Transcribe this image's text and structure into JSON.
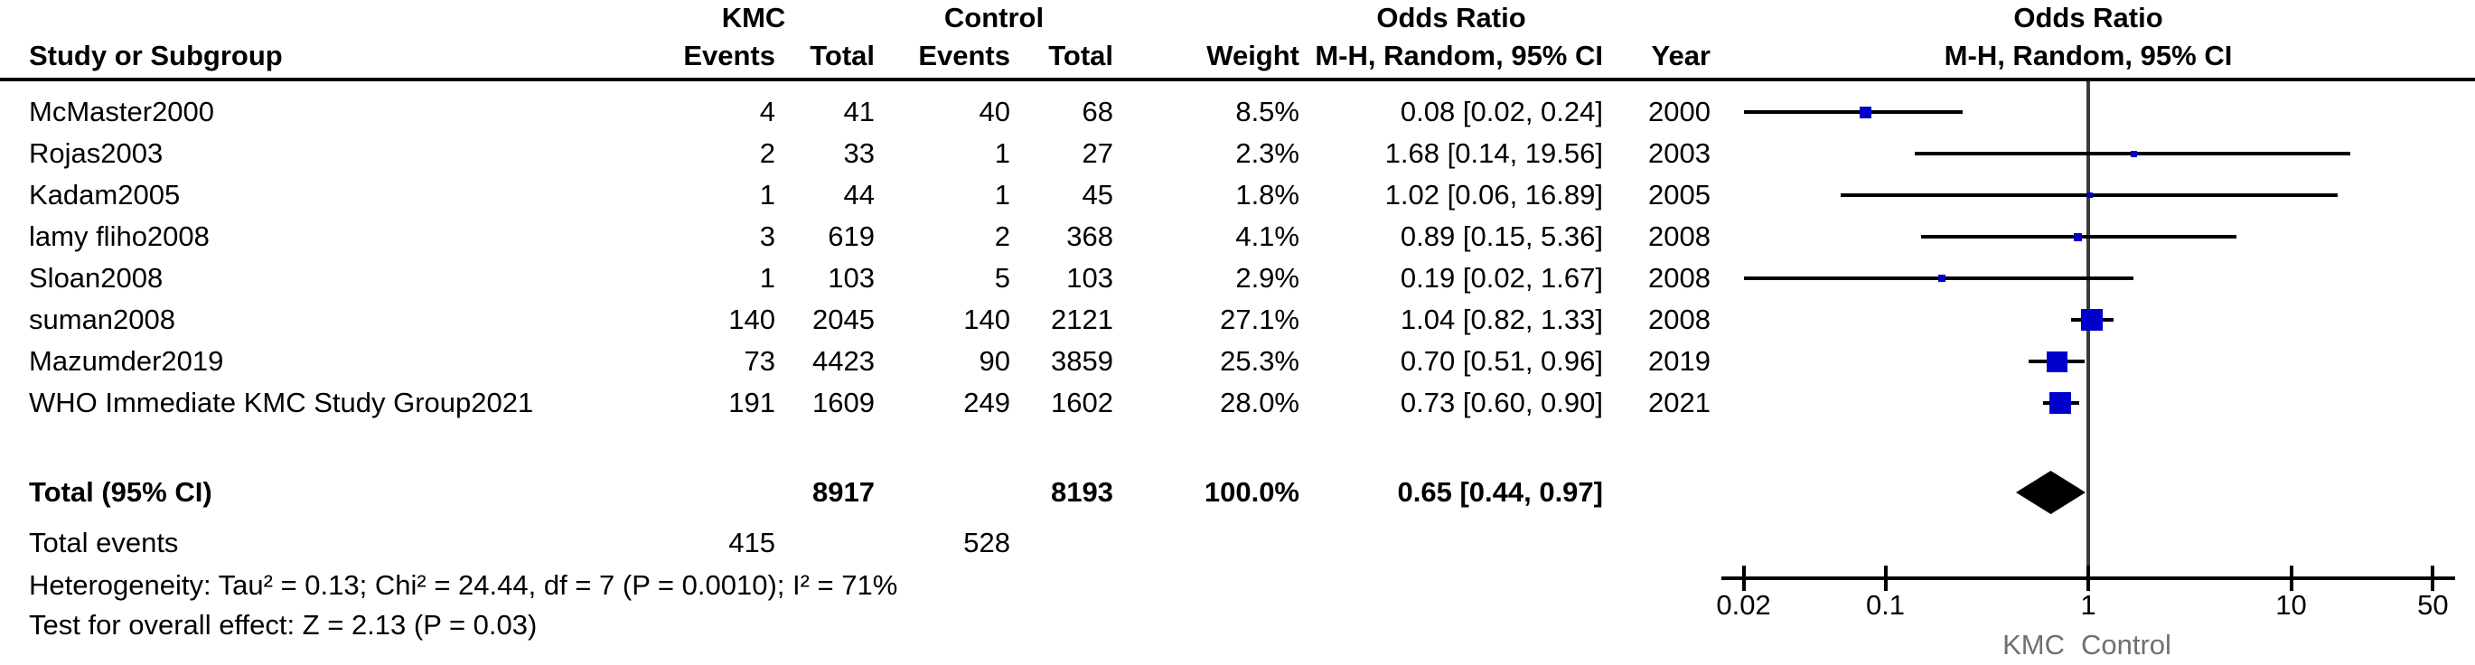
{
  "header": {
    "group_kmc": "KMC",
    "group_control": "Control",
    "group_odds_ratio": "Odds Ratio",
    "col_study": "Study or Subgroup",
    "col_events": "Events",
    "col_total": "Total",
    "col_weight": "Weight",
    "col_or_method": "M-H, Random, 95% CI",
    "col_year": "Year",
    "plot_title": "Odds Ratio",
    "plot_subtitle": "M-H, Random, 95% CI"
  },
  "table": {
    "rows": [
      {
        "study": "McMaster2000",
        "kmc_events": "4",
        "kmc_total": "41",
        "ctl_events": "40",
        "ctl_total": "68",
        "weight": "8.5%",
        "or_ci": "0.08 [0.02, 0.24]",
        "year": "2000"
      },
      {
        "study": "Rojas2003",
        "kmc_events": "2",
        "kmc_total": "33",
        "ctl_events": "1",
        "ctl_total": "27",
        "weight": "2.3%",
        "or_ci": "1.68 [0.14, 19.56]",
        "year": "2003"
      },
      {
        "study": "Kadam2005",
        "kmc_events": "1",
        "kmc_total": "44",
        "ctl_events": "1",
        "ctl_total": "45",
        "weight": "1.8%",
        "or_ci": "1.02 [0.06, 16.89]",
        "year": "2005"
      },
      {
        "study": "lamy fliho2008",
        "kmc_events": "3",
        "kmc_total": "619",
        "ctl_events": "2",
        "ctl_total": "368",
        "weight": "4.1%",
        "or_ci": "0.89 [0.15, 5.36]",
        "year": "2008"
      },
      {
        "study": "Sloan2008",
        "kmc_events": "1",
        "kmc_total": "103",
        "ctl_events": "5",
        "ctl_total": "103",
        "weight": "2.9%",
        "or_ci": "0.19 [0.02, 1.67]",
        "year": "2008"
      },
      {
        "study": "suman2008",
        "kmc_events": "140",
        "kmc_total": "2045",
        "ctl_events": "140",
        "ctl_total": "2121",
        "weight": "27.1%",
        "or_ci": "1.04 [0.82, 1.33]",
        "year": "2008"
      },
      {
        "study": "Mazumder2019",
        "kmc_events": "73",
        "kmc_total": "4423",
        "ctl_events": "90",
        "ctl_total": "3859",
        "weight": "25.3%",
        "or_ci": "0.70 [0.51, 0.96]",
        "year": "2019"
      },
      {
        "study": "WHO Immediate KMC Study Group2021",
        "kmc_events": "191",
        "kmc_total": "1609",
        "ctl_events": "249",
        "ctl_total": "1602",
        "weight": "28.0%",
        "or_ci": "0.73 [0.60, 0.90]",
        "year": "2021"
      }
    ],
    "total_row": {
      "label": "Total (95% CI)",
      "kmc_total": "8917",
      "ctl_total": "8193",
      "weight": "100.0%",
      "or_ci": "0.65 [0.44, 0.97]"
    },
    "total_events": {
      "label": "Total events",
      "kmc": "415",
      "control": "528"
    },
    "heterogeneity": "Heterogeneity: Tau² = 0.13; Chi² = 24.44, df = 7 (P = 0.0010); I² = 71%",
    "overall_effect": "Test for overall effect: Z = 2.13 (P = 0.03)"
  },
  "axis": {
    "tick_labels": [
      "0.02",
      "0.1",
      "1",
      "10",
      "50"
    ],
    "favours_left": "KMC",
    "favours_right": "Control"
  },
  "colors": {
    "marker_blue": "#0000cc",
    "diamond_black": "#000000",
    "ci_line": "#000000",
    "no_effect_line": "#3a3a3a",
    "favours_text": "#707070"
  },
  "chart_data": {
    "type": "forest",
    "effect_measure": "Odds Ratio, M-H, Random, 95% CI",
    "x_scale": "log10",
    "x_ticks": [
      0.02,
      0.1,
      1,
      10,
      50
    ],
    "xlim": [
      0.02,
      50
    ],
    "no_effect_value": 1,
    "studies": [
      {
        "name": "McMaster2000",
        "or": 0.08,
        "ci_low": 0.02,
        "ci_high": 0.24,
        "weight_pct": 8.5,
        "year": 2000
      },
      {
        "name": "Rojas2003",
        "or": 1.68,
        "ci_low": 0.14,
        "ci_high": 19.56,
        "weight_pct": 2.3,
        "year": 2003
      },
      {
        "name": "Kadam2005",
        "or": 1.02,
        "ci_low": 0.06,
        "ci_high": 16.89,
        "weight_pct": 1.8,
        "year": 2005
      },
      {
        "name": "lamy fliho2008",
        "or": 0.89,
        "ci_low": 0.15,
        "ci_high": 5.36,
        "weight_pct": 4.1,
        "year": 2008
      },
      {
        "name": "Sloan2008",
        "or": 0.19,
        "ci_low": 0.02,
        "ci_high": 1.67,
        "weight_pct": 2.9,
        "year": 2008
      },
      {
        "name": "suman2008",
        "or": 1.04,
        "ci_low": 0.82,
        "ci_high": 1.33,
        "weight_pct": 27.1,
        "year": 2008
      },
      {
        "name": "Mazumder2019",
        "or": 0.7,
        "ci_low": 0.51,
        "ci_high": 0.96,
        "weight_pct": 25.3,
        "year": 2019
      },
      {
        "name": "WHO Immediate KMC Study Group2021",
        "or": 0.73,
        "ci_low": 0.6,
        "ci_high": 0.9,
        "weight_pct": 28.0,
        "year": 2021
      }
    ],
    "total": {
      "label": "Total (95% CI)",
      "or": 0.65,
      "ci_low": 0.44,
      "ci_high": 0.97,
      "kmc_total": 8917,
      "ctl_total": 8193,
      "weight_pct": 100.0
    },
    "heterogeneity": {
      "tau2": 0.13,
      "chi2": 24.44,
      "df": 7,
      "p": 0.001,
      "i2_pct": 71
    },
    "overall_effect": {
      "z": 2.13,
      "p": 0.03
    }
  }
}
